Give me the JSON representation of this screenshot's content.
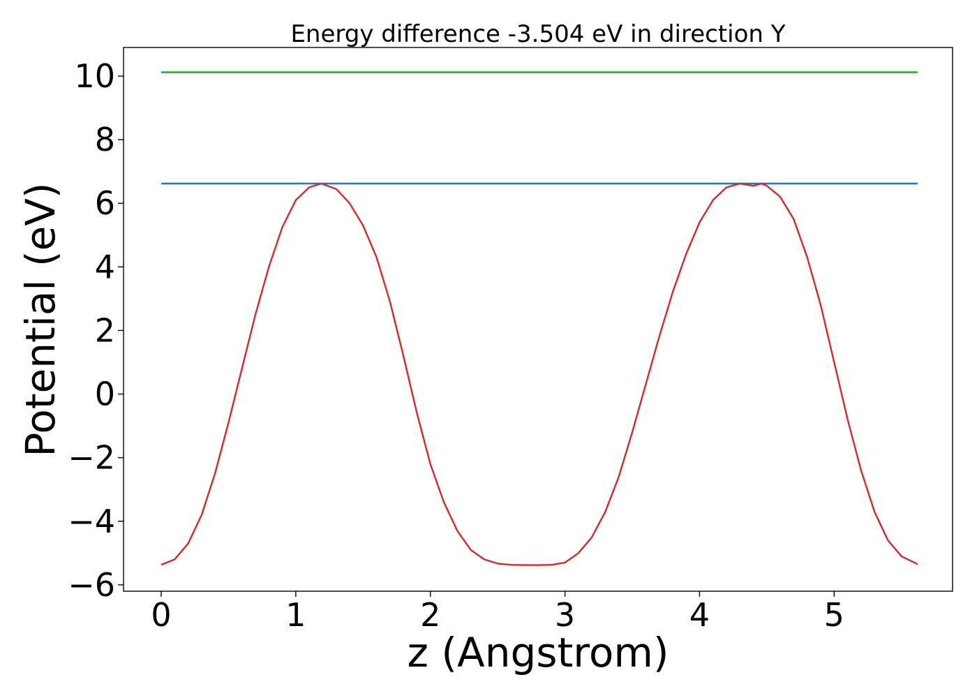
{
  "chart_data": {
    "type": "line",
    "title": "Energy difference -3.504 eV in direction Y",
    "xlabel": "z (Angstrom)",
    "ylabel": "Potential (eV)",
    "xlim": [
      -0.28,
      5.88
    ],
    "ylim": [
      -6.2,
      10.9
    ],
    "xticks": [
      0,
      1,
      2,
      3,
      4,
      5
    ],
    "xtick_labels": [
      "0",
      "1",
      "2",
      "3",
      "4",
      "5"
    ],
    "yticks": [
      -6,
      -4,
      -2,
      0,
      2,
      4,
      6,
      8,
      10
    ],
    "ytick_labels": [
      "−6",
      "−4",
      "−2",
      "0",
      "2",
      "4",
      "6",
      "8",
      "10"
    ],
    "grid": false,
    "series": [
      {
        "color": "#1f77b4",
        "x": [
          0,
          5.62
        ],
        "y": [
          6.62,
          6.62
        ]
      },
      {
        "color": "#2ca02c",
        "x": [
          0,
          5.62
        ],
        "y": [
          10.12,
          10.12
        ]
      },
      {
        "color": "#d62728",
        "x": [
          0.0,
          0.1,
          0.2,
          0.3,
          0.4,
          0.5,
          0.6,
          0.7,
          0.8,
          0.9,
          1.0,
          1.1,
          1.19,
          1.3,
          1.4,
          1.5,
          1.6,
          1.7,
          1.8,
          1.9,
          2.0,
          2.1,
          2.2,
          2.3,
          2.4,
          2.5,
          2.6,
          2.7,
          2.8,
          2.9,
          3.0,
          3.1,
          3.2,
          3.3,
          3.4,
          3.5,
          3.6,
          3.7,
          3.8,
          3.9,
          4.0,
          4.1,
          4.2,
          4.3,
          4.4,
          4.46,
          4.5,
          4.6,
          4.7,
          4.8,
          4.9,
          5.0,
          5.1,
          5.2,
          5.3,
          5.4,
          5.5,
          5.62
        ],
        "y": [
          -5.37,
          -5.2,
          -4.7,
          -3.8,
          -2.5,
          -0.9,
          0.8,
          2.5,
          4.0,
          5.25,
          6.1,
          6.5,
          6.62,
          6.45,
          6.0,
          5.3,
          4.3,
          2.9,
          1.2,
          -0.6,
          -2.2,
          -3.4,
          -4.3,
          -4.9,
          -5.2,
          -5.33,
          -5.37,
          -5.38,
          -5.38,
          -5.37,
          -5.3,
          -5.0,
          -4.5,
          -3.7,
          -2.6,
          -1.2,
          0.3,
          1.8,
          3.2,
          4.4,
          5.4,
          6.1,
          6.5,
          6.62,
          6.55,
          6.62,
          6.55,
          6.2,
          5.5,
          4.3,
          2.8,
          1.0,
          -0.8,
          -2.4,
          -3.7,
          -4.6,
          -5.1,
          -5.35
        ]
      }
    ]
  }
}
